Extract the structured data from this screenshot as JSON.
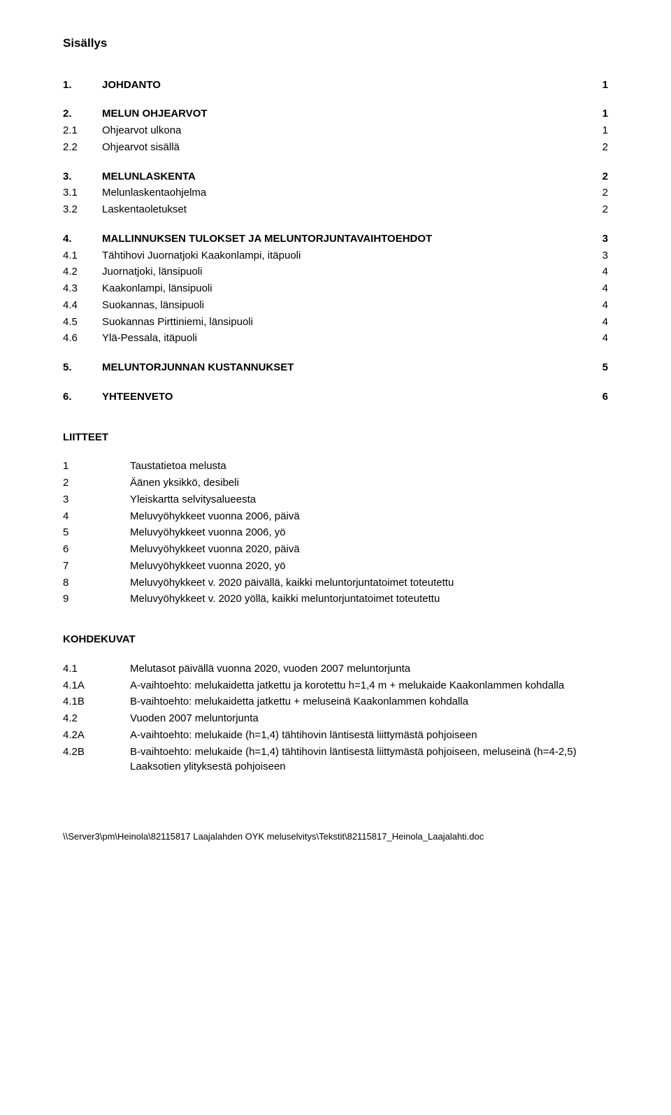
{
  "title": "Sisällys",
  "toc": [
    {
      "num": "1.",
      "text": "JOHDANTO",
      "page": "1",
      "bold": true,
      "gap": false
    },
    {
      "num": "2.",
      "text": "MELUN OHJEARVOT",
      "page": "1",
      "bold": true,
      "gap": true
    },
    {
      "num": "2.1",
      "text": "Ohjearvot ulkona",
      "page": "1",
      "bold": false,
      "gap": false
    },
    {
      "num": "2.2",
      "text": "Ohjearvot sisällä",
      "page": "2",
      "bold": false,
      "gap": false
    },
    {
      "num": "3.",
      "text": "MELUNLASKENTA",
      "page": "2",
      "bold": true,
      "gap": true
    },
    {
      "num": "3.1",
      "text": "Melunlaskentaohjelma",
      "page": "2",
      "bold": false,
      "gap": false
    },
    {
      "num": "3.2",
      "text": "Laskentaoletukset",
      "page": "2",
      "bold": false,
      "gap": false
    },
    {
      "num": "4.",
      "text": "MALLINNUKSEN TULOKSET JA MELUNTORJUNTAVAIHTOEHDOT",
      "page": "3",
      "bold": true,
      "gap": true
    },
    {
      "num": "4.1",
      "text": "Tähtihovi Juornatjoki Kaakonlampi, itäpuoli",
      "page": "3",
      "bold": false,
      "gap": false
    },
    {
      "num": "4.2",
      "text": "Juornatjoki, länsipuoli",
      "page": "4",
      "bold": false,
      "gap": false
    },
    {
      "num": "4.3",
      "text": "Kaakonlampi, länsipuoli",
      "page": "4",
      "bold": false,
      "gap": false
    },
    {
      "num": "4.4",
      "text": "Suokannas, länsipuoli",
      "page": "4",
      "bold": false,
      "gap": false
    },
    {
      "num": "4.5",
      "text": "Suokannas Pirttiniemi, länsipuoli",
      "page": "4",
      "bold": false,
      "gap": false
    },
    {
      "num": "4.6",
      "text": "Ylä-Pessala, itäpuoli",
      "page": "4",
      "bold": false,
      "gap": false
    },
    {
      "num": "5.",
      "text": "MELUNTORJUNNAN KUSTANNUKSET",
      "page": "5",
      "bold": true,
      "gap": true
    },
    {
      "num": "6.",
      "text": "YHTEENVETO",
      "page": "6",
      "bold": true,
      "gap": true
    }
  ],
  "liitteet_heading": "LIITTEET",
  "liitteet": [
    {
      "num": "1",
      "text": "Taustatietoa melusta"
    },
    {
      "num": "2",
      "text": "Äänen yksikkö, desibeli"
    },
    {
      "num": "3",
      "text": "Yleiskartta selvitysalueesta"
    },
    {
      "num": "4",
      "text": "Meluvyöhykkeet vuonna 2006, päivä"
    },
    {
      "num": "5",
      "text": "Meluvyöhykkeet vuonna 2006, yö"
    },
    {
      "num": "6",
      "text": "Meluvyöhykkeet vuonna 2020, päivä"
    },
    {
      "num": "7",
      "text": "Meluvyöhykkeet vuonna 2020, yö"
    },
    {
      "num": "8",
      "text": "Meluvyöhykkeet v. 2020 päivällä, kaikki meluntorjuntatoimet toteutettu"
    },
    {
      "num": "9",
      "text": "Meluvyöhykkeet v. 2020 yöllä, kaikki meluntorjuntatoimet toteutettu"
    }
  ],
  "kohdekuvat_heading": "KOHDEKUVAT",
  "kohdekuvat": [
    {
      "num": "4.1",
      "text": "Melutasot päivällä vuonna 2020, vuoden 2007 meluntorjunta"
    },
    {
      "num": "4.1A",
      "text": "A-vaihtoehto: melukaidetta jatkettu ja korotettu  h=1,4 m + melukaide Kaakonlammen kohdalla"
    },
    {
      "num": "4.1B",
      "text": "B-vaihtoehto: melukaidetta jatkettu + meluseinä Kaakonlammen kohdalla"
    },
    {
      "num": "4.2",
      "text": "Vuoden 2007 meluntorjunta"
    },
    {
      "num": "4.2A",
      "text": "A-vaihtoehto: melukaide (h=1,4) tähtihovin läntisestä liittymästä pohjoiseen"
    },
    {
      "num": "4.2B",
      "text": "B-vaihtoehto: melukaide (h=1,4) tähtihovin läntisestä liittymästä pohjoiseen, meluseinä (h=4-2,5) Laaksotien ylityksestä pohjoiseen"
    }
  ],
  "footer": "\\\\Server3\\pm\\Heinola\\82115817 Laajalahden OYK meluselvitys\\Tekstit\\82115817_Heinola_Laajalahti.doc"
}
